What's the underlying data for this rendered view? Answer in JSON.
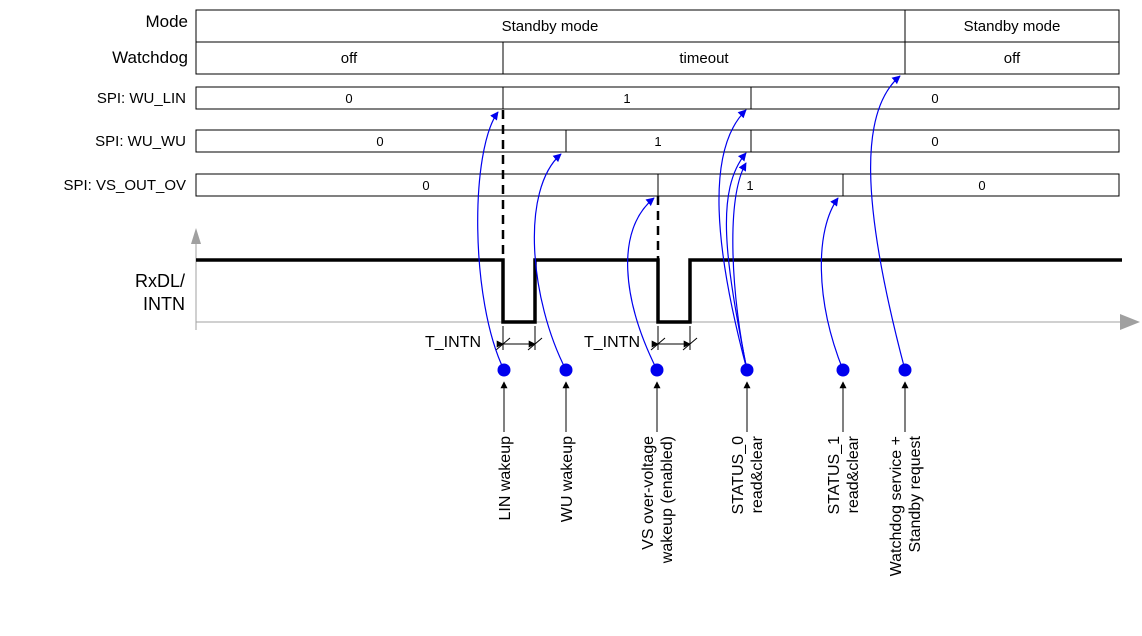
{
  "rows": {
    "mode": "Mode",
    "watchdog": "Watchdog",
    "wu_lin": "SPI: WU_LIN",
    "wu_wu": "SPI: WU_WU",
    "vs_out_ov": "SPI: VS_OUT_OV",
    "rxdl_line1": "RxDL/",
    "rxdl_line2": "INTN"
  },
  "mode_cells": [
    "Standby mode",
    "Standby mode"
  ],
  "watchdog_cells": [
    "off",
    "timeout",
    "off"
  ],
  "wu_lin_values": [
    "0",
    "1",
    "0"
  ],
  "wu_wu_values": [
    "0",
    "1",
    "0"
  ],
  "vs_out_ov_values": [
    "0",
    "1",
    "0"
  ],
  "timing": {
    "t_intn_1": "T_INTN",
    "t_intn_2": "T_INTN"
  },
  "events": {
    "lin_wakeup": [
      "LIN wakeup"
    ],
    "wu_wakeup": [
      "WU wakeup"
    ],
    "vs_overvoltage": [
      "VS over-voltage",
      "wakeup (enabled)"
    ],
    "status0": [
      "STATUS_0",
      "read&clear"
    ],
    "status1": [
      "STATUS_1",
      "read&clear"
    ],
    "watchdog_service": [
      "Watchdog service +",
      "Standby request"
    ]
  },
  "colors": {
    "arrow": "#0000ee",
    "line": "#000000",
    "axis": "#a0a0a0"
  }
}
